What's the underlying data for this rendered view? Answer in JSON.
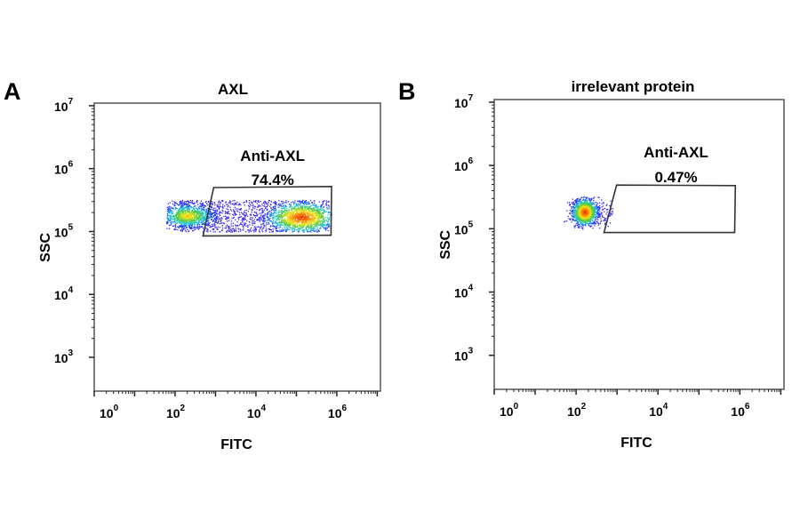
{
  "chart_data": [
    {
      "type": "scatter",
      "panel_label": "A",
      "title": "AXL",
      "xlabel": "FITC",
      "ylabel": "SSC",
      "xscale": "log",
      "yscale": "log",
      "xlim": [
        1,
        12000000
      ],
      "ylim": [
        290,
        11000000
      ],
      "xticks": [
        {
          "base": "10",
          "exp": "0"
        },
        {
          "base": "10",
          "exp": "2"
        },
        {
          "base": "10",
          "exp": "4"
        },
        {
          "base": "10",
          "exp": "6"
        }
      ],
      "yticks": [
        {
          "base": "10",
          "exp": "3"
        },
        {
          "base": "10",
          "exp": "4"
        },
        {
          "base": "10",
          "exp": "5"
        },
        {
          "base": "10",
          "exp": "6"
        },
        {
          "base": "10",
          "exp": "7"
        }
      ],
      "gate": {
        "name": "Anti-AXL",
        "percent": "74.4%",
        "polygon": [
          [
            900,
            500000
          ],
          [
            740000,
            520000
          ],
          [
            720000,
            87000
          ],
          [
            490000,
            87000
          ],
          [
            490,
            85000
          ]
        ]
      },
      "populations": [
        {
          "x_range": [
            60,
            800000
          ],
          "y_range": [
            100000,
            320000
          ],
          "centers": [
            [
              200,
              180000
            ],
            [
              130000,
              170000
            ]
          ]
        }
      ],
      "colormap": "density (blue-green-yellow-red)"
    },
    {
      "type": "scatter",
      "panel_label": "B",
      "title": "irrelevant protein",
      "xlabel": "FITC",
      "ylabel": "SSC",
      "xscale": "log",
      "yscale": "log",
      "xlim": [
        1,
        12000000
      ],
      "ylim": [
        290,
        11000000
      ],
      "xticks": [
        {
          "base": "10",
          "exp": "0"
        },
        {
          "base": "10",
          "exp": "2"
        },
        {
          "base": "10",
          "exp": "4"
        },
        {
          "base": "10",
          "exp": "6"
        }
      ],
      "yticks": [
        {
          "base": "10",
          "exp": "3"
        },
        {
          "base": "10",
          "exp": "4"
        },
        {
          "base": "10",
          "exp": "5"
        },
        {
          "base": "10",
          "exp": "6"
        },
        {
          "base": "10",
          "exp": "7"
        }
      ],
      "gate": {
        "name": "Anti-AXL",
        "percent": "0.47%",
        "polygon": [
          [
            980,
            490000
          ],
          [
            780000,
            480000
          ],
          [
            750000,
            87000
          ],
          [
            480,
            87000
          ]
        ]
      },
      "populations": [
        {
          "x_range": [
            40,
            900
          ],
          "y_range": [
            100000,
            330000
          ],
          "centers": [
            [
              160,
              185000
            ]
          ]
        }
      ],
      "colormap": "density (blue-green-yellow-red)"
    }
  ]
}
